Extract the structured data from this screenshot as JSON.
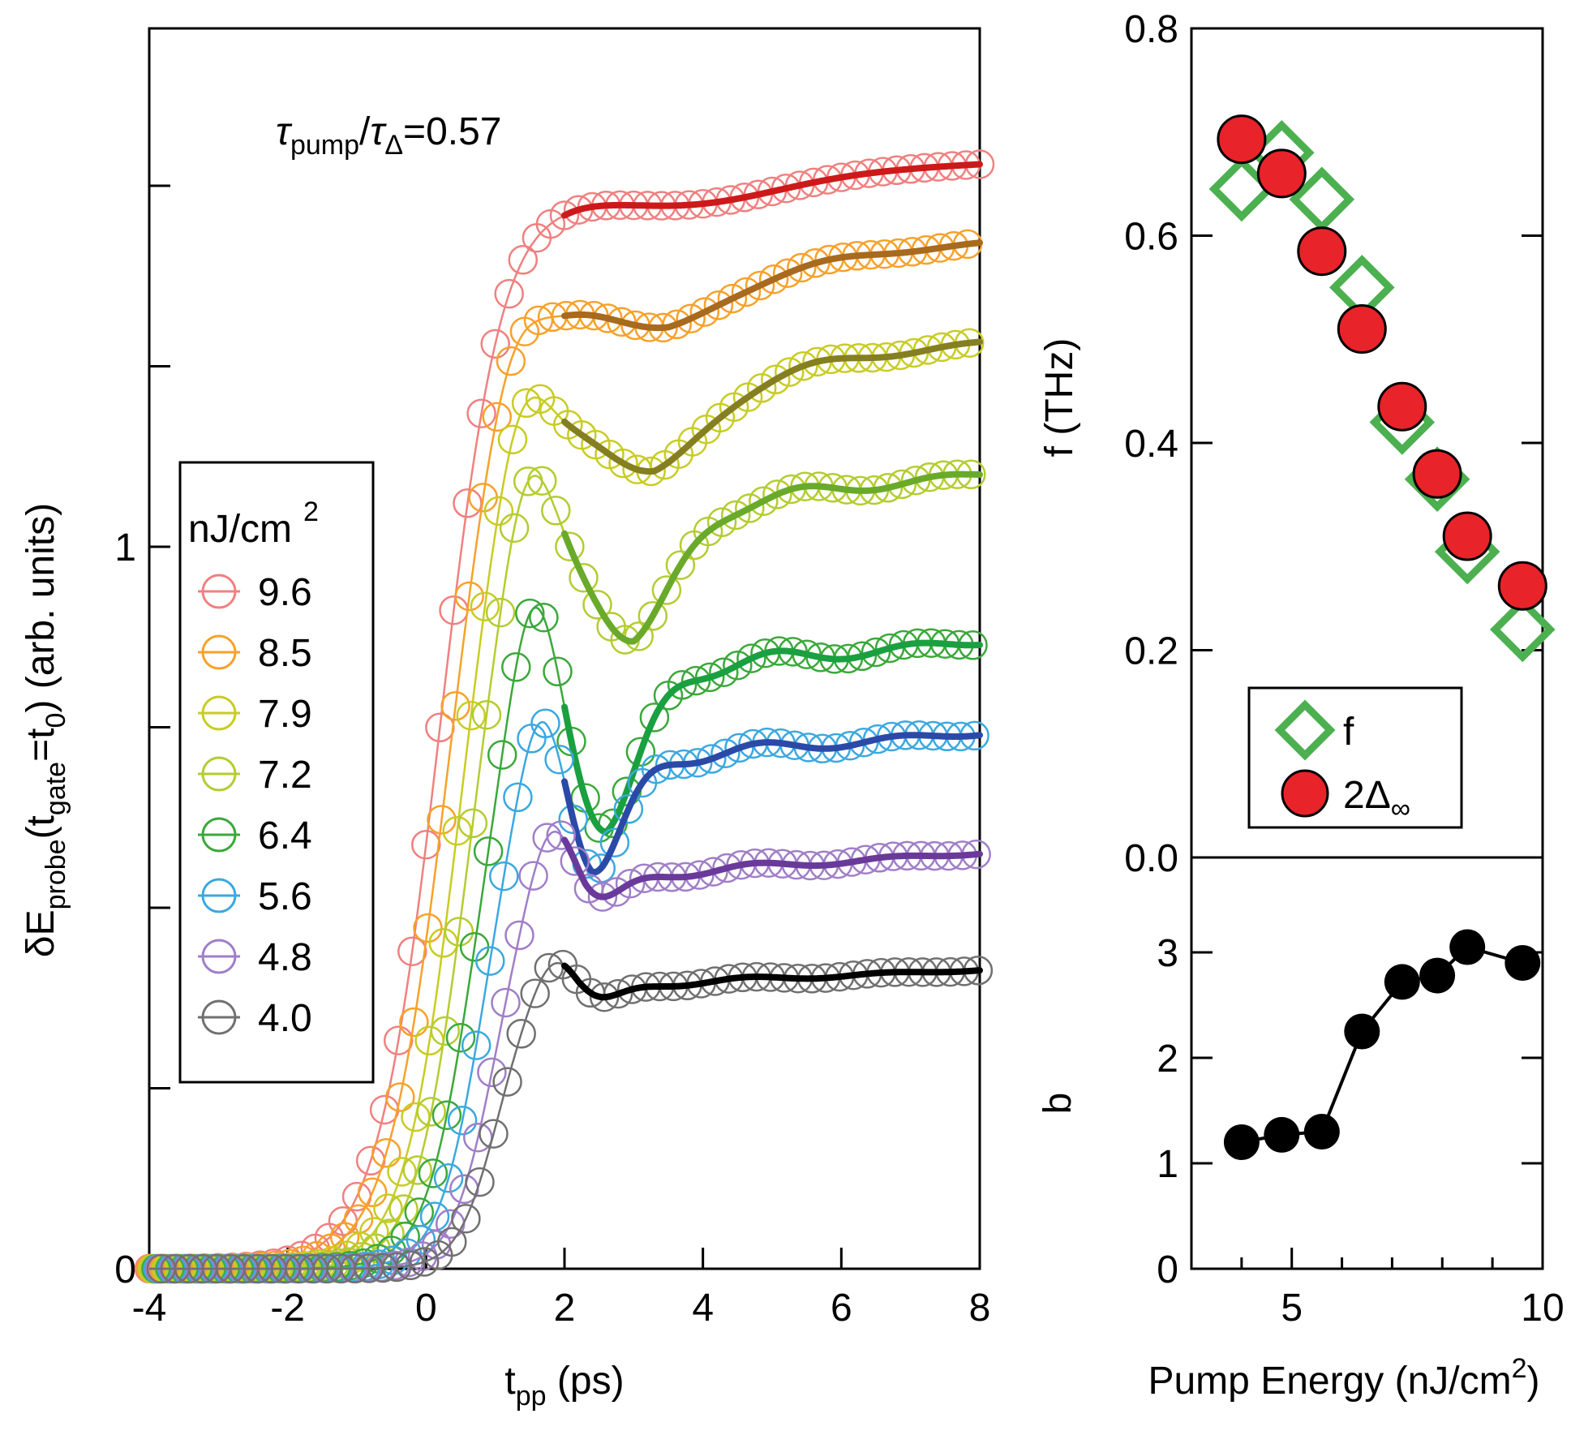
{
  "chart_data": [
    {
      "type": "line",
      "title": "",
      "annotation": {
        "tau1": "τ",
        "sub1": "pump",
        "slash": "/",
        "tau2": "τ",
        "sub2": "Δ",
        "tail": "=0.57"
      },
      "xlabel": {
        "main": "t",
        "sub": "pp",
        "rest": " (ps)"
      },
      "ylabel": {
        "p1": "δE",
        "s1": "probe",
        "p2": "(t",
        "s2": "gate",
        "p3": "=t",
        "s3": "0",
        "p4": ")  (arb. units)"
      },
      "xlim": [
        -4,
        8
      ],
      "ylim": [
        0,
        1.15
      ],
      "x_ticks": [
        "-4",
        "-2",
        "0",
        "2",
        "4",
        "6",
        "8"
      ],
      "y_ticks": [
        "0",
        "1"
      ],
      "legend": {
        "title": "nJ/cm",
        "title_sup": "2",
        "position": "left-middle",
        "entries": [
          "9.6",
          "8.5",
          "7.9",
          "7.2",
          "6.4",
          "5.6",
          "4.8",
          "4.0"
        ]
      },
      "series": [
        {
          "name": "9.6",
          "color": "#f08080",
          "fit_color": "#cc1a1a",
          "plateau": 1.5,
          "peak_extra": 0.005,
          "dip": 0.035,
          "t_dip": 3.8,
          "w_dip": 1.3,
          "t_rise": 0.2,
          "k_rise": 2.2,
          "osc": 0.0,
          "slope": 0.005
        },
        {
          "name": "8.5",
          "color": "#f7a12a",
          "fit_color": "#a86a1e",
          "plateau": 1.36,
          "peak_extra": 0.05,
          "dip": 0.07,
          "t_dip": 3.5,
          "w_dip": 0.9,
          "t_rise": 0.3,
          "k_rise": 2.3,
          "osc": 0.005,
          "slope": 0.01
        },
        {
          "name": "7.9",
          "color": "#c8cc22",
          "fit_color": "#857f22",
          "plateau": 1.21,
          "peak_extra": 0.09,
          "dip": 0.12,
          "t_dip": 3.3,
          "w_dip": 0.8,
          "t_rise": 0.45,
          "k_rise": 2.6,
          "osc": 0.01,
          "slope": 0.012
        },
        {
          "name": "7.2",
          "color": "#b4cc30",
          "fit_color": "#6aaa2a",
          "plateau": 1.04,
          "peak_extra": 0.14,
          "dip": 0.18,
          "t_dip": 3.0,
          "w_dip": 0.6,
          "t_rise": 0.55,
          "k_rise": 2.8,
          "osc": 0.02,
          "slope": 0.01
        },
        {
          "name": "6.4",
          "color": "#3aa83a",
          "fit_color": "#1aa040",
          "plateau": 0.82,
          "peak_extra": 0.18,
          "dip": 0.22,
          "t_dip": 2.6,
          "w_dip": 0.5,
          "t_rise": 0.65,
          "k_rise": 3.0,
          "osc": 0.025,
          "slope": 0.008
        },
        {
          "name": "5.6",
          "color": "#3ba8e0",
          "fit_color": "#2b4aa8",
          "plateau": 0.7,
          "peak_extra": 0.15,
          "dip": 0.17,
          "t_dip": 2.4,
          "w_dip": 0.45,
          "t_rise": 0.8,
          "k_rise": 3.2,
          "osc": 0.02,
          "slope": 0.007
        },
        {
          "name": "4.8",
          "color": "#a07ec8",
          "fit_color": "#6a3a9a",
          "plateau": 0.54,
          "peak_extra": 0.13,
          "dip": 0.06,
          "t_dip": 2.3,
          "w_dip": 0.45,
          "t_rise": 0.95,
          "k_rise": 3.4,
          "osc": 0.012,
          "slope": 0.006
        },
        {
          "name": "4.0",
          "color": "#707070",
          "fit_color": "#000000",
          "plateau": 0.39,
          "peak_extra": 0.09,
          "dip": 0.05,
          "t_dip": 2.2,
          "w_dip": 0.45,
          "t_rise": 1.0,
          "k_rise": 3.6,
          "osc": 0.008,
          "slope": 0.004
        }
      ]
    },
    {
      "type": "scatter",
      "ylabel": "f (THz)",
      "xlim": [
        3,
        10
      ],
      "ylim": [
        0,
        0.8
      ],
      "y_ticks": [
        "0.0",
        "0.2",
        "0.4",
        "0.6",
        "0.8"
      ],
      "legend": {
        "position": "bottom-center",
        "f_label": "f",
        "d_main": "2Δ",
        "d_sub": "∞"
      },
      "series": [
        {
          "name": "f",
          "marker": "diamond",
          "color": "#4cb050",
          "x": [
            4.0,
            4.8,
            5.6,
            6.4,
            7.2,
            7.9,
            8.5,
            9.6
          ],
          "y": [
            0.645,
            0.68,
            0.635,
            0.55,
            0.42,
            0.365,
            0.295,
            0.22
          ]
        },
        {
          "name": "2Δ∞",
          "marker": "circle",
          "color": "#e8232a",
          "x": [
            4.0,
            4.8,
            5.6,
            6.4,
            7.2,
            7.9,
            8.5,
            9.6
          ],
          "y": [
            0.693,
            0.66,
            0.585,
            0.51,
            0.435,
            0.37,
            0.31,
            0.262
          ]
        }
      ]
    },
    {
      "type": "line",
      "ylabel": "b",
      "xlabel": {
        "main": "Pump Energy (nJ/cm",
        "sup": "2",
        "tail": ")"
      },
      "xlim": [
        3,
        10
      ],
      "ylim": [
        0,
        3.9
      ],
      "x_ticks": [
        "5",
        "10"
      ],
      "y_ticks": [
        "0",
        "1",
        "2",
        "3"
      ],
      "series": [
        {
          "name": "b",
          "marker": "circle",
          "color": "#000000",
          "x": [
            4.0,
            4.8,
            5.6,
            6.4,
            7.2,
            7.9,
            8.5,
            9.6
          ],
          "y": [
            1.2,
            1.27,
            1.3,
            2.25,
            2.72,
            2.78,
            3.05,
            2.9
          ]
        }
      ]
    }
  ]
}
